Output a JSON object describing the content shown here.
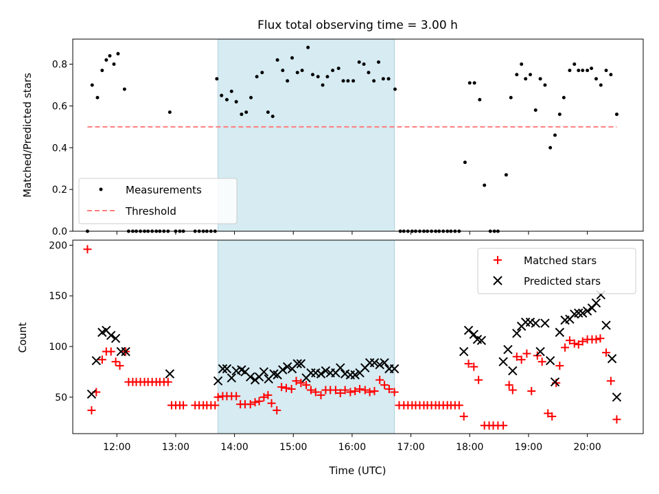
{
  "chart_data": [
    {
      "type": "scatter",
      "title": "Flux total observing time = 3.00 h",
      "xlabel": "",
      "ylabel": "Matched/Predicted stars",
      "xlim": [
        11.25,
        20.95
      ],
      "ylim": [
        0,
        0.92
      ],
      "yticks": [
        0.0,
        0.2,
        0.4,
        0.6,
        0.8
      ],
      "ytick_labels": [
        "0.0",
        "0.2",
        "0.4",
        "0.6",
        "0.8"
      ],
      "shaded_span": {
        "x": [
          13.72,
          16.72
        ],
        "color": "#add8e6"
      },
      "legend": {
        "position": "lower-left",
        "entries": [
          "Measurements",
          "Threshold"
        ]
      },
      "series": [
        {
          "name": "Measurements",
          "marker": "dot",
          "color": "#000000",
          "x": [
            11.5,
            11.58,
            11.67,
            11.75,
            11.82,
            11.88,
            11.95,
            12.02,
            12.13,
            12.9,
            13.7,
            13.78,
            13.87,
            13.95,
            14.03,
            14.12,
            14.2,
            14.28,
            14.38,
            14.47,
            14.57,
            14.65,
            14.73,
            14.82,
            14.9,
            14.98,
            15.07,
            15.15,
            15.25,
            15.33,
            15.42,
            15.5,
            15.58,
            15.67,
            15.77,
            15.85,
            15.93,
            16.02,
            16.12,
            16.2,
            16.28,
            16.37,
            16.45,
            16.53,
            16.62,
            16.73,
            17.92,
            18.0,
            18.08,
            18.17,
            18.25,
            18.62,
            18.7,
            18.8,
            18.88,
            18.95,
            19.03,
            19.12,
            19.2,
            19.28,
            19.37,
            19.45,
            19.53,
            19.6,
            19.7,
            19.78,
            19.85,
            19.92,
            20.0,
            20.07,
            20.15,
            20.23,
            20.32,
            20.4,
            20.5
          ],
          "y": [
            0.0,
            0.7,
            0.64,
            0.77,
            0.82,
            0.84,
            0.8,
            0.85,
            0.68,
            0.57,
            0.73,
            0.65,
            0.63,
            0.67,
            0.62,
            0.56,
            0.57,
            0.64,
            0.74,
            0.76,
            0.57,
            0.55,
            0.82,
            0.77,
            0.72,
            0.83,
            0.76,
            0.77,
            0.88,
            0.75,
            0.74,
            0.7,
            0.74,
            0.77,
            0.78,
            0.72,
            0.72,
            0.72,
            0.81,
            0.8,
            0.76,
            0.72,
            0.81,
            0.73,
            0.73,
            0.68,
            0.33,
            0.71,
            0.71,
            0.63,
            0.22,
            0.27,
            0.64,
            0.75,
            0.8,
            0.73,
            0.75,
            0.58,
            0.73,
            0.7,
            0.4,
            0.46,
            0.56,
            0.64,
            0.77,
            0.8,
            0.77,
            0.77,
            0.77,
            0.78,
            0.73,
            0.7,
            0.77,
            0.75,
            0.56
          ]
        },
        {
          "name": "zero-values",
          "marker": "dot",
          "color": "#000000",
          "x": [
            12.2,
            12.27,
            12.33,
            12.4,
            12.47,
            12.53,
            12.6,
            12.67,
            12.73,
            12.8,
            12.87,
            13.0,
            13.07,
            13.13,
            13.33,
            13.4,
            13.47,
            13.53,
            13.6,
            13.67,
            16.82,
            16.88,
            16.95,
            17.02,
            17.08,
            17.15,
            17.22,
            17.28,
            17.35,
            17.42,
            17.48,
            17.55,
            17.62,
            17.68,
            17.75,
            17.82,
            18.35,
            18.42,
            18.48
          ],
          "y": [
            0,
            0,
            0,
            0,
            0,
            0,
            0,
            0,
            0,
            0,
            0,
            0,
            0,
            0,
            0,
            0,
            0,
            0,
            0,
            0,
            0,
            0,
            0,
            0,
            0,
            0,
            0,
            0,
            0,
            0,
            0,
            0,
            0,
            0,
            0,
            0,
            0,
            0,
            0
          ]
        },
        {
          "name": "Threshold",
          "marker": "dashed-line",
          "color": "#ff7b7b",
          "x": [
            11.5,
            20.5
          ],
          "y": [
            0.5,
            0.5
          ]
        }
      ]
    },
    {
      "type": "scatter",
      "title": "",
      "xlabel": "Time (UTC)",
      "ylabel": "Count",
      "xlim": [
        11.25,
        20.95
      ],
      "ylim": [
        14,
        205
      ],
      "yticks": [
        50,
        100,
        150,
        200
      ],
      "ytick_labels": [
        "50",
        "100",
        "150",
        "200"
      ],
      "xticks": [
        12,
        13,
        14,
        15,
        16,
        17,
        18,
        19,
        20
      ],
      "xtick_labels": [
        "12:00",
        "13:00",
        "14:00",
        "15:00",
        "16:00",
        "17:00",
        "18:00",
        "19:00",
        "20:00"
      ],
      "shaded_span": {
        "x": [
          13.72,
          16.72
        ],
        "color": "#add8e6"
      },
      "legend": {
        "position": "top-right",
        "entries": [
          "Matched stars",
          "Predicted stars"
        ]
      },
      "series": [
        {
          "name": "Matched stars",
          "marker": "plus",
          "color": "#ff0000",
          "x": [
            11.5,
            11.57,
            11.65,
            11.75,
            11.82,
            11.9,
            11.98,
            12.05,
            12.15,
            12.2,
            12.27,
            12.33,
            12.4,
            12.47,
            12.53,
            12.6,
            12.67,
            12.73,
            12.8,
            12.87,
            12.93,
            13.0,
            13.07,
            13.13,
            13.33,
            13.4,
            13.47,
            13.53,
            13.6,
            13.67,
            13.72,
            13.8,
            13.87,
            13.95,
            14.03,
            14.1,
            14.18,
            14.27,
            14.35,
            14.42,
            14.5,
            14.57,
            14.63,
            14.72,
            14.8,
            14.88,
            14.97,
            15.05,
            15.13,
            15.22,
            15.3,
            15.38,
            15.47,
            15.55,
            15.63,
            15.72,
            15.8,
            15.88,
            15.97,
            16.05,
            16.13,
            16.22,
            16.3,
            16.38,
            16.47,
            16.55,
            16.63,
            16.72,
            16.8,
            16.88,
            16.95,
            17.02,
            17.08,
            17.15,
            17.22,
            17.28,
            17.35,
            17.42,
            17.48,
            17.55,
            17.62,
            17.68,
            17.75,
            17.82,
            17.9,
            17.98,
            18.07,
            18.15,
            18.25,
            18.33,
            18.4,
            18.48,
            18.57,
            18.67,
            18.73,
            18.8,
            18.88,
            18.97,
            19.05,
            19.15,
            19.23,
            19.33,
            19.4,
            19.47,
            19.53,
            19.62,
            19.7,
            19.78,
            19.85,
            19.92,
            20.0,
            20.08,
            20.15,
            20.22,
            20.32,
            20.4,
            20.5
          ],
          "y": [
            196,
            37,
            55,
            87,
            95,
            95,
            85,
            81,
            95,
            65,
            65,
            65,
            65,
            65,
            65,
            65,
            65,
            65,
            65,
            65,
            42,
            42,
            42,
            42,
            42,
            42,
            42,
            42,
            42,
            42,
            50,
            51,
            51,
            51,
            51,
            43,
            43,
            43,
            45,
            46,
            50,
            52,
            44,
            37,
            60,
            59,
            58,
            66,
            64,
            62,
            57,
            55,
            52,
            57,
            57,
            57,
            54,
            57,
            55,
            56,
            58,
            57,
            55,
            56,
            67,
            62,
            58,
            55,
            42,
            42,
            42,
            42,
            42,
            42,
            42,
            42,
            42,
            42,
            42,
            42,
            42,
            42,
            42,
            42,
            31,
            83,
            80,
            67,
            22,
            22,
            22,
            22,
            22,
            62,
            57,
            90,
            87,
            93,
            56,
            91,
            85,
            34,
            31,
            64,
            81,
            99,
            106,
            103,
            102,
            105,
            107,
            107,
            107,
            108,
            94,
            66,
            28
          ]
        },
        {
          "name": "Predicted stars",
          "marker": "x",
          "color": "#000000",
          "x": [
            11.57,
            11.65,
            11.75,
            11.82,
            11.9,
            11.98,
            12.07,
            12.15,
            12.9,
            13.72,
            13.8,
            13.87,
            13.95,
            14.03,
            14.12,
            14.18,
            14.27,
            14.35,
            14.42,
            14.5,
            14.58,
            14.67,
            14.73,
            14.82,
            14.9,
            14.98,
            15.07,
            15.13,
            15.22,
            15.3,
            15.38,
            15.47,
            15.55,
            15.63,
            15.72,
            15.8,
            15.88,
            15.97,
            16.05,
            16.13,
            16.22,
            16.3,
            16.38,
            16.47,
            16.55,
            16.63,
            16.72,
            17.9,
            17.98,
            18.07,
            18.13,
            18.2,
            18.57,
            18.65,
            18.73,
            18.8,
            18.88,
            18.95,
            19.03,
            19.12,
            19.2,
            19.28,
            19.37,
            19.45,
            19.53,
            19.62,
            19.7,
            19.78,
            19.85,
            19.92,
            20.0,
            20.08,
            20.15,
            20.23,
            20.32,
            20.42,
            20.5
          ],
          "y": [
            53,
            86,
            114,
            116,
            111,
            108,
            95,
            95,
            73,
            66,
            78,
            78,
            69,
            76,
            77,
            75,
            70,
            67,
            70,
            75,
            68,
            73,
            72,
            77,
            80,
            78,
            83,
            83,
            69,
            74,
            74,
            73,
            76,
            74,
            74,
            79,
            73,
            72,
            72,
            74,
            79,
            84,
            84,
            82,
            84,
            78,
            78,
            95,
            116,
            112,
            107,
            106,
            85,
            97,
            76,
            113,
            120,
            124,
            124,
            123,
            95,
            123,
            86,
            65,
            114,
            126,
            127,
            132,
            133,
            133,
            135,
            138,
            143,
            151,
            121,
            88,
            50
          ]
        }
      ]
    }
  ]
}
